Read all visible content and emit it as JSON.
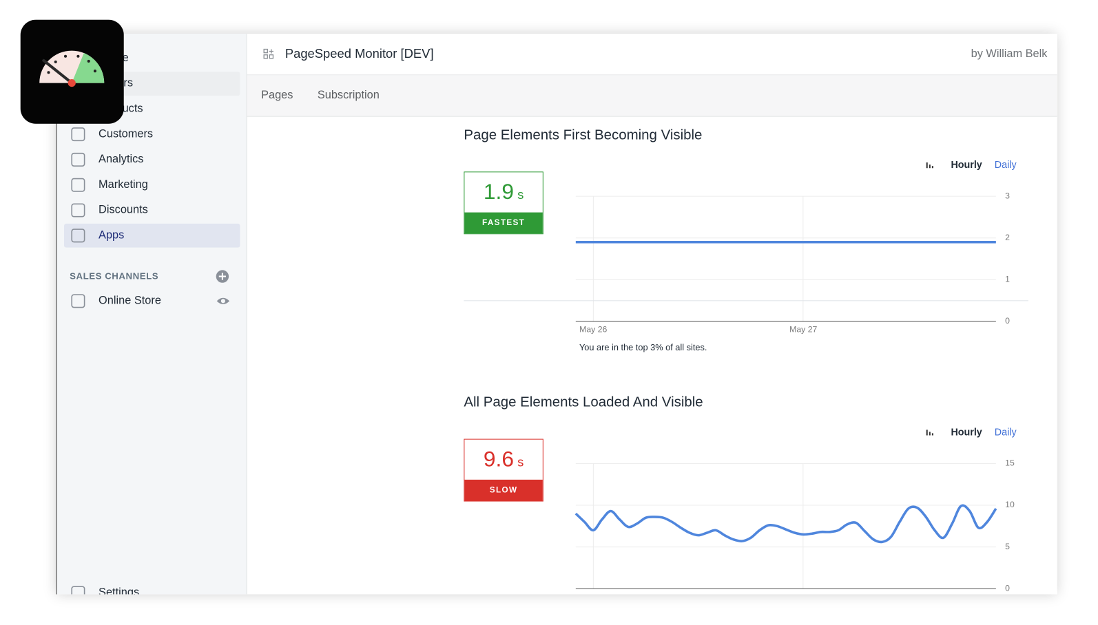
{
  "sidebar": {
    "items": [
      "Home",
      "Orders",
      "Products",
      "Customers",
      "Analytics",
      "Marketing",
      "Discounts",
      "Apps"
    ],
    "sales_channels": {
      "title": "SALES CHANNELS",
      "items": [
        "Online Store"
      ]
    },
    "settings": "Settings"
  },
  "header": {
    "title": "PageSpeed Monitor [DEV]",
    "author": "by William Belk"
  },
  "tabs": [
    "Pages",
    "Subscription"
  ],
  "sections": [
    {
      "title": "Page Elements First Becoming Visible",
      "score": {
        "value": 1.9,
        "unit": "s",
        "label": "FASTEST",
        "color": "#2f9a36"
      },
      "toggles": [
        "Hourly",
        "Daily"
      ],
      "chart": {
        "type": "line",
        "color": "#4f86dd",
        "ylim": [
          0,
          3
        ],
        "yticks": [
          0,
          1,
          2,
          3
        ],
        "categories": [
          null,
          null,
          "May 26",
          null,
          null,
          null,
          null,
          null,
          null,
          null,
          null,
          null,
          null,
          null,
          null,
          null,
          null,
          null,
          null,
          null,
          null,
          null,
          null,
          null,
          null,
          null,
          "May 27",
          null,
          null,
          null,
          null,
          null,
          null,
          null,
          null,
          null,
          null,
          null,
          null,
          null,
          null,
          null,
          null,
          null,
          null,
          null,
          null,
          null,
          null
        ],
        "values": [
          1.9,
          1.9,
          1.9,
          1.9,
          1.9,
          1.9,
          1.9,
          1.9,
          1.9,
          1.9,
          1.9,
          1.9,
          1.9,
          1.9,
          1.9,
          1.9,
          1.9,
          1.9,
          1.9,
          1.9,
          1.9,
          1.9,
          1.9,
          1.9,
          1.9,
          1.9,
          1.9,
          1.9,
          1.9,
          1.9,
          1.9,
          1.9,
          1.9,
          1.9,
          1.9,
          1.9,
          1.9,
          1.9,
          1.9,
          1.9,
          1.9,
          1.9,
          1.9,
          1.9,
          1.9,
          1.9,
          1.9,
          1.9,
          1.9
        ]
      },
      "note": "You are in the top 3% of all sites."
    },
    {
      "title": "All Page Elements Loaded And Visible",
      "score": {
        "value": 9.6,
        "unit": "s",
        "label": "SLOW",
        "color": "#d9302a"
      },
      "toggles": [
        "Hourly",
        "Daily"
      ],
      "chart": {
        "type": "line",
        "color": "#4f86dd",
        "ylim": [
          0,
          15
        ],
        "yticks": [
          0,
          5,
          10,
          15
        ],
        "values": [
          9.0,
          8.0,
          7.0,
          8.3,
          9.3,
          8.3,
          7.4,
          7.8,
          8.5,
          8.6,
          8.5,
          8.0,
          7.3,
          6.7,
          6.4,
          6.7,
          7.0,
          6.4,
          5.9,
          5.7,
          6.1,
          7.0,
          7.6,
          7.5,
          7.1,
          6.7,
          6.5,
          6.6,
          6.8,
          6.8,
          7.0,
          7.7,
          7.9,
          6.9,
          5.9,
          5.6,
          6.2,
          8.0,
          9.6,
          9.7,
          8.6,
          7.0,
          6.1,
          7.8,
          9.9,
          9.3,
          7.3,
          8.0,
          9.6
        ]
      }
    }
  ]
}
